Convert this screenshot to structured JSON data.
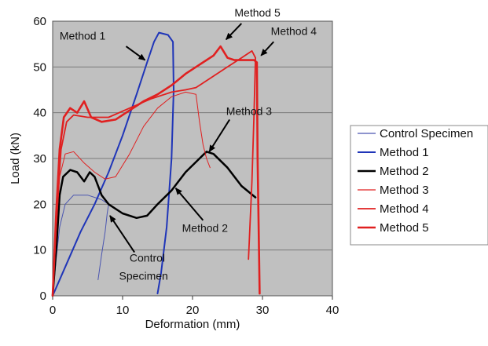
{
  "chart_data": {
    "type": "line",
    "title": "",
    "xlabel": "Deformation (mm)",
    "ylabel": "Load (kN)",
    "xlim": [
      0,
      40
    ],
    "ylim": [
      0,
      60
    ],
    "x_ticks": [
      "0",
      "10",
      "20",
      "30",
      "40"
    ],
    "y_ticks": [
      "0",
      "10",
      "20",
      "30",
      "40",
      "50",
      "60"
    ],
    "grid": true,
    "plot_background": "#c0c0c0",
    "legend_position": "right",
    "series": [
      {
        "name": "Control Specimen",
        "color": "#4a55b0",
        "width": 1,
        "points": [
          [
            6.5,
            3.5
          ],
          [
            7,
            9
          ],
          [
            7.5,
            14
          ],
          [
            7.8,
            18
          ],
          [
            8,
            20
          ],
          [
            7,
            21
          ],
          [
            5,
            22
          ],
          [
            3,
            22
          ],
          [
            1.8,
            20
          ],
          [
            1,
            15
          ],
          [
            0.5,
            8
          ],
          [
            0.2,
            3
          ],
          [
            0,
            0
          ]
        ]
      },
      {
        "name": "Method 1",
        "color": "#1f35b8",
        "width": 2,
        "points": [
          [
            0,
            0
          ],
          [
            2,
            7
          ],
          [
            4,
            14
          ],
          [
            6,
            20
          ],
          [
            8,
            27
          ],
          [
            10,
            35
          ],
          [
            12,
            44
          ],
          [
            13.5,
            51
          ],
          [
            14.5,
            55.5
          ],
          [
            15.2,
            57.5
          ],
          [
            16.5,
            57
          ],
          [
            17.2,
            55.5
          ],
          [
            17.3,
            45
          ],
          [
            17,
            30
          ],
          [
            16.3,
            15
          ],
          [
            15.5,
            5
          ],
          [
            15,
            0.5
          ]
        ]
      },
      {
        "name": "Method 2",
        "color": "#000000",
        "width": 2.5,
        "points": [
          [
            0,
            0
          ],
          [
            0.6,
            12
          ],
          [
            1,
            22
          ],
          [
            1.5,
            26
          ],
          [
            2.5,
            27.5
          ],
          [
            3.5,
            27
          ],
          [
            4.5,
            25
          ],
          [
            5.3,
            27
          ],
          [
            6,
            26
          ],
          [
            7,
            22
          ],
          [
            8,
            20
          ],
          [
            10,
            18
          ],
          [
            12,
            17
          ],
          [
            13.5,
            17.5
          ],
          [
            15,
            20
          ],
          [
            17,
            23
          ],
          [
            19,
            27
          ],
          [
            21,
            30
          ],
          [
            22,
            31.5
          ],
          [
            23,
            31
          ],
          [
            25,
            28
          ],
          [
            27,
            24
          ],
          [
            29,
            21.5
          ]
        ]
      },
      {
        "name": "Method 3",
        "color": "#e02020",
        "width": 1,
        "points": [
          [
            0,
            0
          ],
          [
            0.5,
            14
          ],
          [
            1,
            26
          ],
          [
            1.8,
            31
          ],
          [
            3,
            31.5
          ],
          [
            4.5,
            29
          ],
          [
            6,
            27
          ],
          [
            7.5,
            25.5
          ],
          [
            9,
            26
          ],
          [
            11,
            31
          ],
          [
            13,
            37
          ],
          [
            15,
            41
          ],
          [
            17,
            43.5
          ],
          [
            19,
            44.5
          ],
          [
            20.5,
            44
          ],
          [
            21,
            38
          ],
          [
            21.5,
            33
          ],
          [
            22,
            30
          ],
          [
            22.5,
            28
          ]
        ]
      },
      {
        "name": "Method 4",
        "color": "#e02020",
        "width": 1.8,
        "points": [
          [
            0,
            0
          ],
          [
            0.6,
            18
          ],
          [
            1.2,
            32
          ],
          [
            2,
            38
          ],
          [
            3,
            39.5
          ],
          [
            5,
            39
          ],
          [
            8,
            39
          ],
          [
            11,
            41
          ],
          [
            14,
            43
          ],
          [
            17,
            44.5
          ],
          [
            19,
            45
          ],
          [
            20.5,
            45.5
          ],
          [
            21.5,
            46.5
          ],
          [
            23,
            48
          ],
          [
            25,
            50
          ],
          [
            27,
            52
          ],
          [
            28.5,
            53.5
          ],
          [
            29,
            52
          ],
          [
            28.8,
            40
          ],
          [
            28.5,
            25
          ],
          [
            28.2,
            15
          ],
          [
            28,
            8
          ]
        ]
      },
      {
        "name": "Method 5",
        "color": "#e02020",
        "width": 2.6,
        "points": [
          [
            0,
            0
          ],
          [
            0.5,
            18
          ],
          [
            1,
            32
          ],
          [
            1.6,
            39
          ],
          [
            2.5,
            41
          ],
          [
            3.5,
            40
          ],
          [
            4.5,
            42.5
          ],
          [
            5.5,
            39
          ],
          [
            7,
            38
          ],
          [
            9,
            38.5
          ],
          [
            11,
            40.5
          ],
          [
            13,
            42.5
          ],
          [
            15,
            44
          ],
          [
            17,
            46
          ],
          [
            19,
            48.5
          ],
          [
            21,
            50.5
          ],
          [
            23,
            52.5
          ],
          [
            24,
            54.5
          ],
          [
            25,
            52
          ],
          [
            26,
            51.5
          ],
          [
            27.5,
            51.5
          ],
          [
            28.8,
            51.5
          ],
          [
            29.2,
            51
          ],
          [
            29.3,
            30
          ],
          [
            29.5,
            10
          ],
          [
            29.6,
            0.5
          ]
        ]
      }
    ],
    "annotations": [
      {
        "text": "Method 1",
        "x": 1,
        "y": 56,
        "arrow_from": [
          10.5,
          54.5
        ],
        "arrow_to": [
          13.2,
          51.5
        ]
      },
      {
        "text": "Method 5",
        "x": 26,
        "y": 61,
        "arrow_from": [
          27,
          59.5
        ],
        "arrow_to": [
          24.8,
          56
        ]
      },
      {
        "text": "Method 4",
        "x": 31.2,
        "y": 57,
        "arrow_from": [
          31.6,
          55.5
        ],
        "arrow_to": [
          29.8,
          52.5
        ]
      },
      {
        "text": "Method 3",
        "x": 24.8,
        "y": 39.5,
        "arrow_from": [
          25.3,
          38.5
        ],
        "arrow_to": [
          22.4,
          31.5
        ]
      },
      {
        "text": "Method 2",
        "x": 18.5,
        "y": 14,
        "arrow_from": [
          21.5,
          16.5
        ],
        "arrow_to": [
          17.6,
          23.5
        ]
      },
      {
        "text": "Control",
        "x": 11,
        "y": 7.5,
        "arrow_from": [
          11.7,
          9.5
        ],
        "arrow_to": [
          8.2,
          17.5
        ]
      },
      {
        "text": "Specimen",
        "x": 9.5,
        "y": 3.5,
        "arrow_from": null,
        "arrow_to": null
      }
    ]
  }
}
